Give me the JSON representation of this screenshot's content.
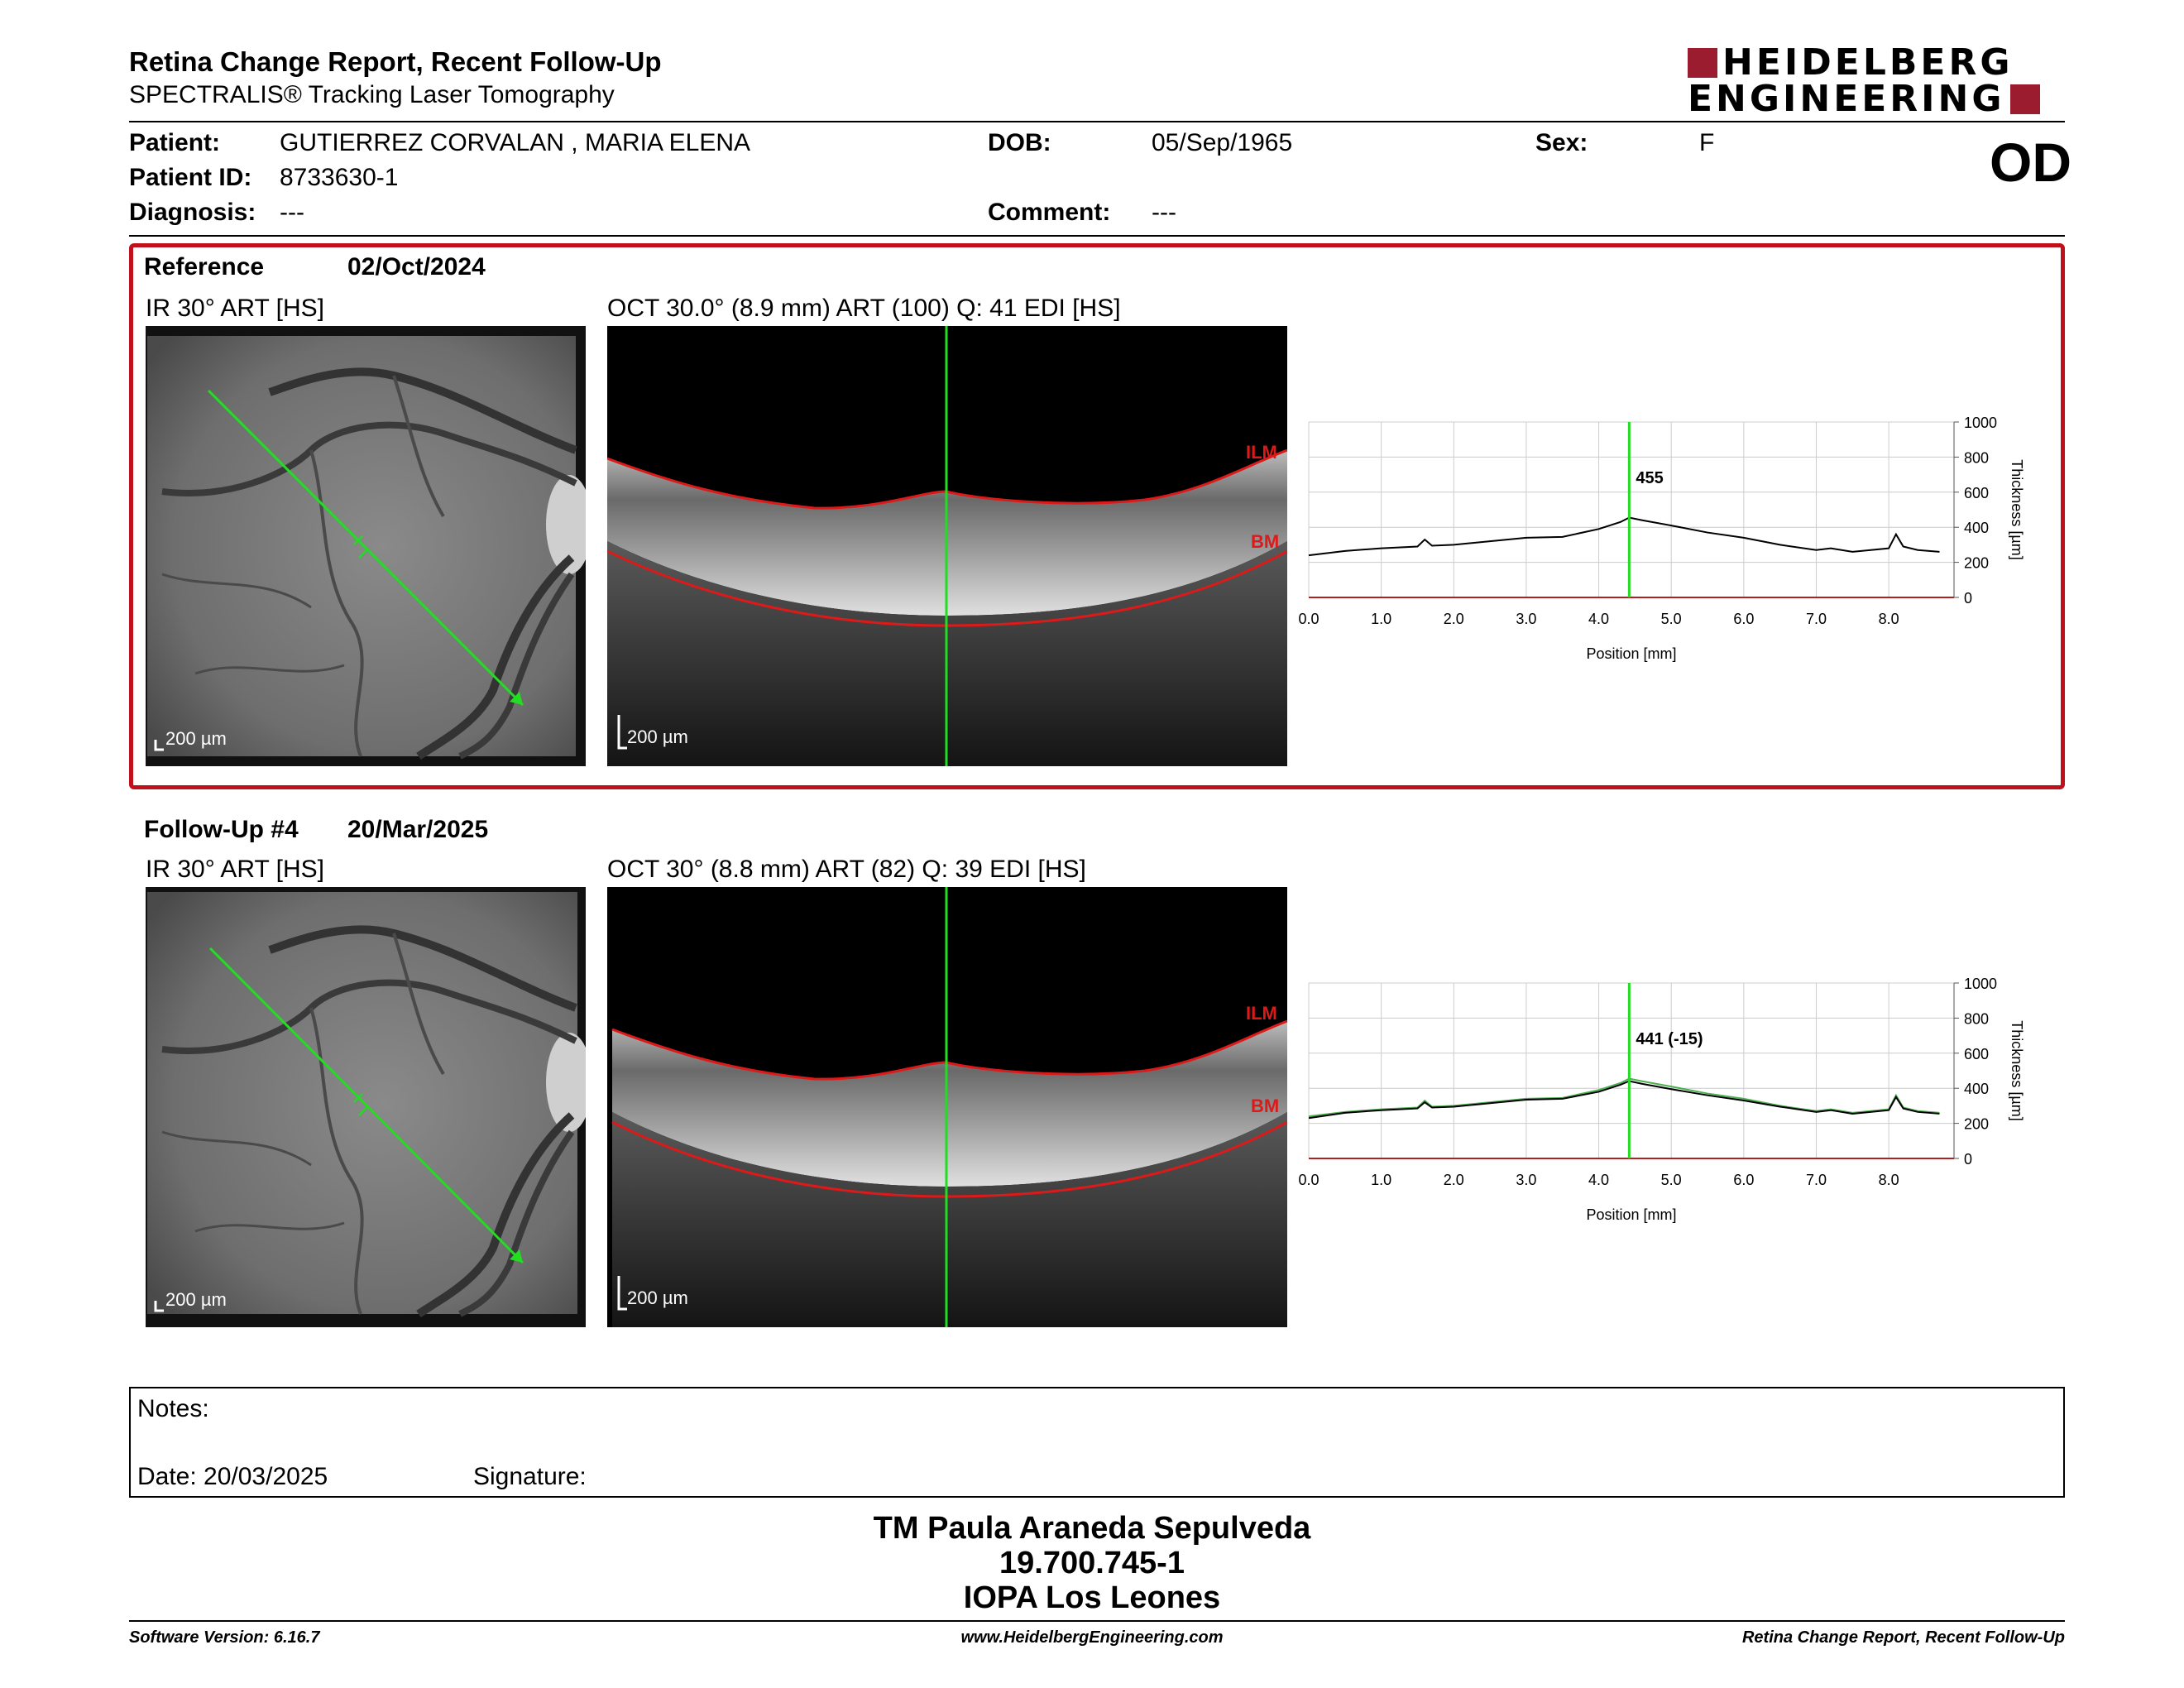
{
  "header": {
    "title": "Retina Change Report, Recent Follow-Up",
    "subtitle": "SPECTRALIS® Tracking Laser Tomography",
    "logo_line1": "HEIDELBERG",
    "logo_line2": "ENGINEERING",
    "eye": "OD"
  },
  "patient": {
    "patient_label": "Patient:",
    "patient_value": "GUTIERREZ CORVALAN , MARIA ELENA",
    "dob_label": "DOB:",
    "dob_value": "05/Sep/1965",
    "sex_label": "Sex:",
    "sex_value": "F",
    "id_label": "Patient ID:",
    "id_value": "8733630-1",
    "diagnosis_label": "Diagnosis:",
    "diagnosis_value": "---",
    "comment_label": "Comment:",
    "comment_value": "---"
  },
  "reference": {
    "label": "Reference",
    "date": "02/Oct/2024",
    "ir_caption": "IR 30° ART [HS]",
    "oct_caption": "OCT 30.0° (8.9 mm) ART (100) Q: 41 EDI [HS]",
    "scale": "200 µm",
    "ilm": "ILM",
    "bm": "BM",
    "thickness_label": "455"
  },
  "followup": {
    "label": "Follow-Up #4",
    "date": "20/Mar/2025",
    "ir_caption": "IR 30° ART [HS]",
    "oct_caption": "OCT 30° (8.8 mm) ART (82) Q: 39 EDI [HS]",
    "scale": "200 µm",
    "ilm": "ILM",
    "bm": "BM",
    "thickness_label": "441 (-15)"
  },
  "chart_data": [
    {
      "type": "line",
      "x": [
        0.0,
        0.5,
        1.0,
        1.5,
        1.6,
        1.7,
        2.0,
        2.5,
        3.0,
        3.5,
        4.0,
        4.3,
        4.42,
        4.6,
        5.0,
        5.5,
        6.0,
        6.5,
        7.0,
        7.2,
        7.5,
        8.0,
        8.1,
        8.2,
        8.4,
        8.7
      ],
      "series": [
        {
          "name": "",
          "values": [
            240,
            265,
            280,
            290,
            330,
            295,
            300,
            320,
            340,
            345,
            390,
            430,
            455,
            440,
            410,
            370,
            340,
            300,
            270,
            280,
            260,
            280,
            360,
            290,
            270,
            260
          ]
        }
      ],
      "cursor_x": 4.42,
      "cursor_label": "455",
      "xlabel": "Position [mm]",
      "ylabel": "Thickness [µm]",
      "xticks": [
        "0.0",
        "1.0",
        "2.0",
        "3.0",
        "4.0",
        "5.0",
        "6.0",
        "7.0",
        "8.0"
      ],
      "yticks": [
        "0",
        "200",
        "400",
        "600",
        "800",
        "1000"
      ],
      "xlim": [
        0,
        8.9
      ],
      "ylim": [
        0,
        1000
      ]
    },
    {
      "type": "line",
      "x": [
        0.0,
        0.5,
        1.0,
        1.5,
        1.6,
        1.7,
        2.0,
        2.5,
        3.0,
        3.5,
        4.0,
        4.3,
        4.42,
        4.6,
        5.0,
        5.5,
        6.0,
        6.5,
        7.0,
        7.2,
        7.5,
        8.0,
        8.1,
        8.2,
        8.4,
        8.7
      ],
      "series": [
        {
          "name": "",
          "values": [
            230,
            260,
            275,
            285,
            320,
            290,
            295,
            315,
            335,
            340,
            380,
            420,
            441,
            425,
            395,
            360,
            330,
            295,
            265,
            275,
            255,
            275,
            350,
            285,
            265,
            255
          ]
        },
        {
          "name": "",
          "values": [
            240,
            265,
            280,
            290,
            330,
            295,
            300,
            320,
            340,
            345,
            390,
            430,
            455,
            440,
            410,
            370,
            340,
            300,
            270,
            280,
            260,
            280,
            360,
            290,
            270,
            260
          ]
        }
      ],
      "cursor_x": 4.42,
      "cursor_label": "441 (-15)",
      "xlabel": "Position [mm]",
      "ylabel": "Thickness [µm]",
      "xticks": [
        "0.0",
        "1.0",
        "2.0",
        "3.0",
        "4.0",
        "5.0",
        "6.0",
        "7.0",
        "8.0"
      ],
      "yticks": [
        "0",
        "200",
        "400",
        "600",
        "800",
        "1000"
      ],
      "xlim": [
        0,
        8.9
      ],
      "ylim": [
        0,
        1000
      ]
    }
  ],
  "notes": {
    "notes_label": "Notes:",
    "date_label": "Date: 20/03/2025",
    "signature_label": "Signature:"
  },
  "footer": {
    "name": "TM Paula Araneda Sepulveda",
    "rut": "19.700.745-1",
    "place": "IOPA Los Leones",
    "software": "Software Version: 6.16.7",
    "website": "www.HeidelbergEngineering.com",
    "report": "Retina Change Report, Recent Follow-Up"
  }
}
